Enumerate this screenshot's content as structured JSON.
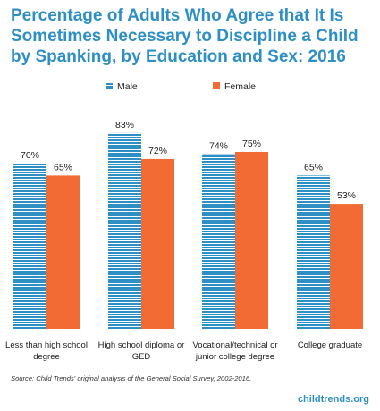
{
  "title": "Percentage of Adults Who Agree that It Is Sometimes Necessary to Discipline a Child by Spanking, by Education and Sex: 2016",
  "source": "Source: Child Trends' original analysis of the General Social Survey, 2002-2016.",
  "brand": "childtrends.org",
  "colors": {
    "male": "#2d8fc4",
    "female": "#f26b34",
    "title": "#2d8fc4"
  },
  "chart_data": {
    "type": "bar",
    "categories": [
      [
        "Less than high school",
        "degree"
      ],
      [
        "High school diploma or",
        "GED"
      ],
      [
        "Vocational/technical or",
        "junior college degree"
      ],
      [
        "College graduate"
      ]
    ],
    "series": [
      {
        "name": "Male",
        "values": [
          70,
          83,
          74,
          65
        ],
        "labels": [
          "70%",
          "83%",
          "74%",
          "65%"
        ]
      },
      {
        "name": "Female",
        "values": [
          65,
          72,
          75,
          53
        ],
        "labels": [
          "65%",
          "72%",
          "75%",
          "53%"
        ]
      }
    ],
    "ylim": [
      0,
      100
    ],
    "grid": false,
    "legend_position": "top"
  }
}
